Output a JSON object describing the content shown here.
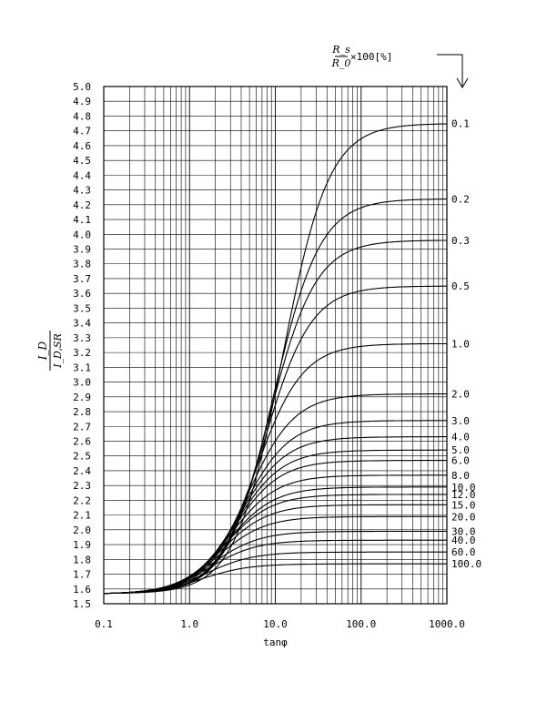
{
  "chart_data": {
    "type": "line",
    "title": "",
    "xlabel": "tanφ",
    "ylabel": {
      "numerator": "I_D",
      "denominator": "I_D,SR"
    },
    "xscale": "log",
    "xlim": [
      0.1,
      1000
    ],
    "ylim": [
      1.5,
      5.0
    ],
    "grid": true,
    "x_ticks": [
      "0.1",
      "1.0",
      "10.0",
      "100.0",
      "1000.0"
    ],
    "y_ticks": [
      "1.5",
      "1.6",
      "1.7",
      "1.8",
      "1.9",
      "2.0",
      "2.1",
      "2.2",
      "2.3",
      "2.4",
      "2.5",
      "2.6",
      "2.7",
      "2.8",
      "2.9",
      "3.0",
      "3.1",
      "3.2",
      "3.3",
      "3.4",
      "3.5",
      "3.6",
      "3.7",
      "3.8",
      "3.9",
      "4.0",
      "4.1",
      "4.2",
      "4.3",
      "4.4",
      "4.5",
      "4.6",
      "4.7",
      "4.8",
      "4.9",
      "5.0"
    ],
    "legend": {
      "title": "R_s/R_0 ×100[%]",
      "placement": "right"
    },
    "start_value": 1.57,
    "series": [
      {
        "name": "0.1",
        "asymptote": 4.75,
        "x_half": 12.0
      },
      {
        "name": "0.2",
        "asymptote": 4.24,
        "x_half": 9.5
      },
      {
        "name": "0.3",
        "asymptote": 3.96,
        "x_half": 8.5
      },
      {
        "name": "0.5",
        "asymptote": 3.65,
        "x_half": 7.5
      },
      {
        "name": "1.0",
        "asymptote": 3.26,
        "x_half": 6.0
      },
      {
        "name": "2.0",
        "asymptote": 2.92,
        "x_half": 4.8
      },
      {
        "name": "3.0",
        "asymptote": 2.74,
        "x_half": 4.2
      },
      {
        "name": "4.0",
        "asymptote": 2.63,
        "x_half": 3.8
      },
      {
        "name": "5.0",
        "asymptote": 2.54,
        "x_half": 3.5
      },
      {
        "name": "6.0",
        "asymptote": 2.47,
        "x_half": 3.3
      },
      {
        "name": "8.0",
        "asymptote": 2.37,
        "x_half": 3.0
      },
      {
        "name": "10.0",
        "asymptote": 2.29,
        "x_half": 2.8
      },
      {
        "name": "12.0",
        "asymptote": 2.24,
        "x_half": 2.6
      },
      {
        "name": "15.0",
        "asymptote": 2.17,
        "x_half": 2.4
      },
      {
        "name": "20.0",
        "asymptote": 2.09,
        "x_half": 2.2
      },
      {
        "name": "30.0",
        "asymptote": 1.99,
        "x_half": 1.9
      },
      {
        "name": "40.0",
        "asymptote": 1.93,
        "x_half": 1.75
      },
      {
        "name": "60.0",
        "asymptote": 1.85,
        "x_half": 1.6
      },
      {
        "name": "100.0",
        "asymptote": 1.77,
        "x_half": 1.4
      }
    ]
  }
}
